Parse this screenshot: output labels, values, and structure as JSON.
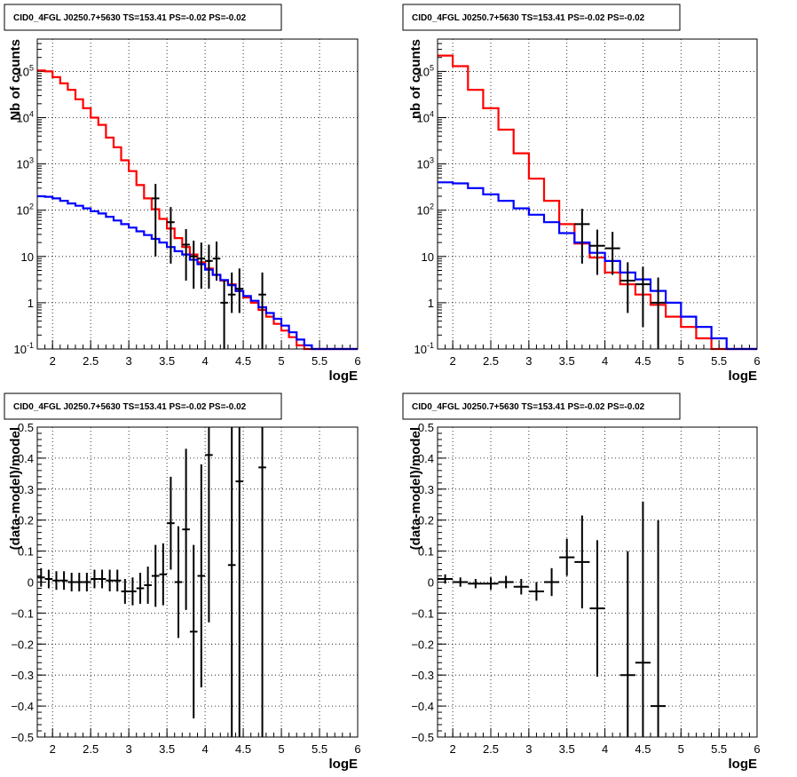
{
  "chart_data": [
    {
      "type": "histogram",
      "title": "CID0_4FGL J0250.7+5630 TS=153.41 PS=-0.02 PS=-0.02",
      "xlabel": "logE",
      "ylabel": "Nb of counts",
      "xlim": [
        1.8,
        6.0
      ],
      "ylim": [
        0.1,
        500000
      ],
      "yscale": "log",
      "grid": true,
      "x_ticks": [
        "2",
        "2.5",
        "3",
        "3.5",
        "4",
        "4.5",
        "5",
        "5.5",
        "6"
      ],
      "y_ticks": [
        "10^-1",
        "1",
        "10",
        "10^2",
        "10^3",
        "10^4",
        "10^5"
      ],
      "series": [
        {
          "color": "#ff0000",
          "style": "step",
          "bin_edges": [
            1.8,
            1.9,
            2.0,
            2.1,
            2.2,
            2.3,
            2.4,
            2.5,
            2.6,
            2.7,
            2.8,
            2.9,
            3.0,
            3.1,
            3.2,
            3.3,
            3.4,
            3.5,
            3.6,
            3.7,
            3.8,
            3.9,
            4.0,
            4.1,
            4.2,
            4.3,
            4.4,
            4.5,
            4.6,
            4.7,
            4.8,
            4.9,
            5.0,
            5.1,
            5.2,
            5.3,
            5.4,
            5.5,
            5.6,
            5.7,
            5.8,
            5.9,
            6.0
          ],
          "values": [
            105000,
            100000,
            75000,
            55000,
            40000,
            25000,
            16000,
            10000,
            7000,
            3700,
            2300,
            1200,
            700,
            350,
            180,
            105,
            65,
            40,
            25,
            16,
            11,
            7.5,
            5.5,
            4,
            3,
            2.5,
            1.8,
            1.3,
            1,
            0.7,
            0.5,
            0.35,
            0.25,
            0.18,
            0.12,
            0.1,
            0.1,
            0.1,
            0.1,
            0.1,
            0.1,
            0.1
          ]
        },
        {
          "color": "#0000ff",
          "style": "step",
          "bin_edges": [
            1.8,
            1.9,
            2.0,
            2.1,
            2.2,
            2.3,
            2.4,
            2.5,
            2.6,
            2.7,
            2.8,
            2.9,
            3.0,
            3.1,
            3.2,
            3.3,
            3.4,
            3.5,
            3.6,
            3.7,
            3.8,
            3.9,
            4.0,
            4.1,
            4.2,
            4.3,
            4.4,
            4.5,
            4.6,
            4.7,
            4.8,
            4.9,
            5.0,
            5.1,
            5.2,
            5.3,
            5.4,
            5.5,
            5.6,
            5.7,
            5.8,
            5.9,
            6.0
          ],
          "values": [
            200,
            195,
            180,
            160,
            140,
            125,
            110,
            95,
            85,
            72,
            60,
            50,
            42,
            35,
            29,
            24,
            20,
            16,
            13,
            11,
            8.5,
            6.8,
            5.2,
            4,
            3.1,
            2.4,
            1.8,
            1.4,
            1.1,
            0.8,
            0.6,
            0.45,
            0.32,
            0.23,
            0.16,
            0.12,
            0.1,
            0.1,
            0.1,
            0.1,
            0.1,
            0.1
          ]
        },
        {
          "color": "#000000",
          "style": "errorbar",
          "x": [
            3.35,
            3.55,
            3.75,
            3.85,
            3.95,
            4.05,
            4.15,
            4.25,
            4.35,
            4.45,
            4.75
          ],
          "y": [
            180,
            55,
            18,
            10,
            9,
            8,
            9,
            1,
            1.5,
            2,
            1.5
          ],
          "xerr": 0.05,
          "yerr_lo": [
            170,
            48,
            15,
            8,
            7,
            6,
            6,
            0.9,
            0.9,
            1.4,
            1.4
          ],
          "yerr_hi": [
            190,
            62,
            21,
            12,
            11,
            10,
            12,
            2,
            3,
            3.5,
            3
          ]
        }
      ]
    },
    {
      "type": "histogram",
      "title": "CID0_4FGL J0250.7+5630 TS=153.41 PS=-0.02 PS=-0.02",
      "xlabel": "logE",
      "ylabel": "nb of counts",
      "xlim": [
        1.8,
        6.0
      ],
      "ylim": [
        0.1,
        500000
      ],
      "yscale": "log",
      "grid": true,
      "x_ticks": [
        "2",
        "2.5",
        "3",
        "3.5",
        "4",
        "4.5",
        "5",
        "5.5",
        "6"
      ],
      "y_ticks": [
        "10^-1",
        "1",
        "10",
        "10^2",
        "10^3",
        "10^4",
        "10^5"
      ],
      "series": [
        {
          "color": "#ff0000",
          "style": "step",
          "bin_edges": [
            1.8,
            2.0,
            2.2,
            2.4,
            2.6,
            2.8,
            3.0,
            3.2,
            3.4,
            3.6,
            3.8,
            4.0,
            4.2,
            4.4,
            4.6,
            4.8,
            5.0,
            5.2,
            5.4,
            5.6,
            5.8,
            6.0
          ],
          "values": [
            220000,
            130000,
            40000,
            16000,
            5500,
            1700,
            480,
            160,
            50,
            19,
            9.5,
            4.5,
            2.5,
            1.5,
            0.9,
            0.5,
            0.3,
            0.17,
            0.1,
            0.1,
            0.1
          ]
        },
        {
          "color": "#0000ff",
          "style": "step",
          "bin_edges": [
            1.8,
            2.0,
            2.2,
            2.4,
            2.6,
            2.8,
            3.0,
            3.2,
            3.4,
            3.6,
            3.8,
            4.0,
            4.2,
            4.4,
            4.6,
            4.8,
            5.0,
            5.2,
            5.4,
            5.6,
            5.8,
            6.0
          ],
          "values": [
            400,
            380,
            300,
            220,
            160,
            110,
            80,
            55,
            32,
            20,
            12,
            8,
            4.5,
            3.2,
            1.8,
            1.0,
            0.5,
            0.3,
            0.17,
            0.1,
            0.1
          ]
        },
        {
          "color": "#000000",
          "style": "errorbar",
          "x": [
            3.7,
            3.9,
            4.1,
            4.3,
            4.5,
            4.7
          ],
          "y": [
            50,
            17,
            15,
            3,
            2.5,
            1
          ],
          "xerr": 0.1,
          "yerr_lo": [
            43,
            13,
            11,
            2.4,
            2.2,
            0.95
          ],
          "yerr_hi": [
            57,
            21,
            19,
            4.5,
            3.5,
            2.5
          ]
        }
      ]
    },
    {
      "type": "scatter",
      "title": "CID0_4FGL J0250.7+5630 TS=153.41 PS=-0.02 PS=-0.02",
      "xlabel": "logE",
      "ylabel": "(data-model)/model",
      "xlim": [
        1.8,
        6.0
      ],
      "ylim": [
        -0.5,
        0.5
      ],
      "yscale": "linear",
      "grid": true,
      "x_ticks": [
        "2",
        "2.5",
        "3",
        "3.5",
        "4",
        "4.5",
        "5",
        "5.5",
        "6"
      ],
      "y_ticks": [
        "-0.5",
        "-0.4",
        "-0.3",
        "-0.2",
        "-0.1",
        "0",
        "0.1",
        "0.2",
        "0.3",
        "0.4",
        "0.5"
      ],
      "series": [
        {
          "color": "#000000",
          "style": "errorbar",
          "x": [
            1.85,
            1.95,
            2.05,
            2.15,
            2.25,
            2.35,
            2.45,
            2.55,
            2.65,
            2.75,
            2.85,
            2.95,
            3.05,
            3.15,
            3.25,
            3.35,
            3.45,
            3.55,
            3.65,
            3.75,
            3.85,
            3.95,
            4.05,
            4.35,
            4.45,
            4.75
          ],
          "y": [
            0.015,
            0.01,
            0.005,
            0.005,
            0.0,
            0.0,
            0.0,
            0.01,
            0.01,
            0.005,
            0.005,
            -0.03,
            -0.03,
            -0.02,
            -0.01,
            0.02,
            0.025,
            0.19,
            0.0,
            0.17,
            -0.16,
            0.02,
            0.41,
            0.055,
            0.325,
            0.37
          ],
          "xerr": 0.05,
          "yerr": [
            0.03,
            0.03,
            0.03,
            0.03,
            0.03,
            0.03,
            0.03,
            0.03,
            0.03,
            0.035,
            0.035,
            0.04,
            0.045,
            0.05,
            0.06,
            0.1,
            0.1,
            0.15,
            0.18,
            0.26,
            0.28,
            0.36,
            0.54,
            0.9,
            0.9,
            0.9
          ]
        }
      ]
    },
    {
      "type": "scatter",
      "title": "CID0_4FGL J0250.7+5630 TS=153.41 PS=-0.02 PS=-0.02",
      "xlabel": "logE",
      "ylabel": "(data-model)/model",
      "xlim": [
        1.8,
        6.0
      ],
      "ylim": [
        -0.5,
        0.5
      ],
      "yscale": "linear",
      "grid": true,
      "x_ticks": [
        "2",
        "2.5",
        "3",
        "3.5",
        "4",
        "4.5",
        "5",
        "5.5",
        "6"
      ],
      "y_ticks": [
        "-0.5",
        "-0.4",
        "-0.3",
        "-0.2",
        "-0.1",
        "0",
        "0.1",
        "0.2",
        "0.3",
        "0.4",
        "0.5"
      ],
      "series": [
        {
          "color": "#000000",
          "style": "errorbar",
          "x": [
            1.9,
            2.1,
            2.3,
            2.5,
            2.7,
            2.9,
            3.1,
            3.3,
            3.5,
            3.7,
            3.9,
            4.3,
            4.5,
            4.7
          ],
          "y": [
            0.01,
            0.0,
            -0.005,
            -0.005,
            0.0,
            -0.015,
            -0.03,
            0.0,
            0.08,
            0.065,
            -0.085,
            -0.3,
            -0.26,
            -0.4
          ],
          "xerr": 0.1,
          "yerr": [
            0.015,
            0.015,
            0.015,
            0.02,
            0.02,
            0.025,
            0.03,
            0.045,
            0.06,
            0.15,
            0.22,
            0.4,
            0.52,
            0.6
          ]
        }
      ]
    }
  ]
}
